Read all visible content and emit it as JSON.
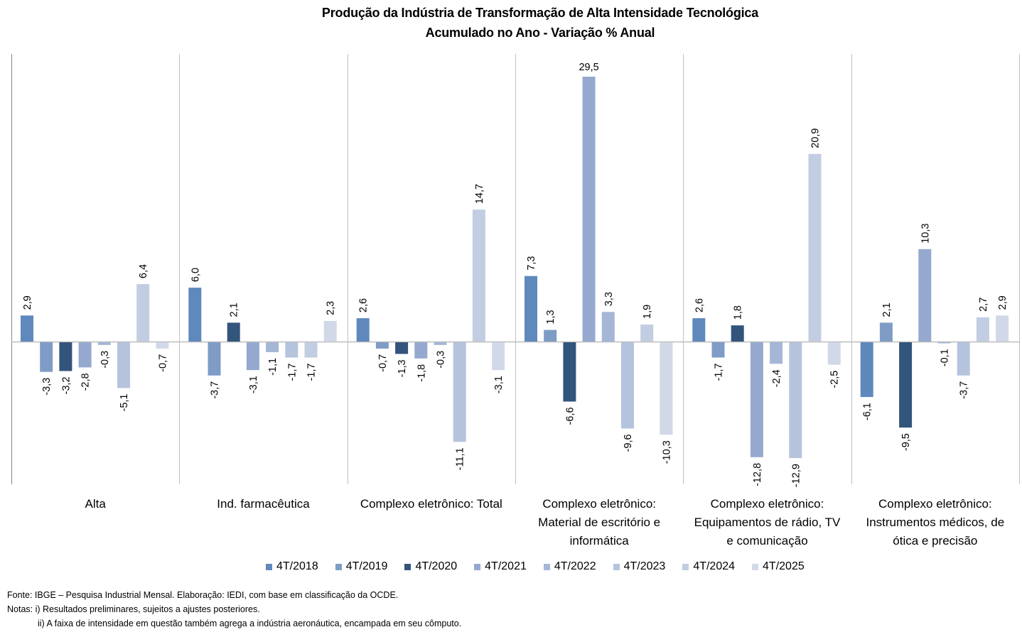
{
  "chart_data": {
    "type": "bar",
    "title": "Produção da Indústria de Transformação de Alta Intensidade Tecnológica",
    "subtitle": "Acumulado no Ano - Variação % Anual",
    "xlabel": "",
    "ylabel": "",
    "ylim": [
      -15,
      32
    ],
    "grid": false,
    "legend_position": "bottom",
    "categories": [
      "Alta",
      "Ind. farmacêutica",
      "Complexo eletrônico: Total",
      "Complexo eletrônico: Material de escritório e informática",
      "Complexo eletrônico: Equipamentos de rádio, TV e comunicação",
      "Complexo eletrônico: Instrumentos médicos, de ótica e precisão"
    ],
    "category_label_lines": [
      [
        "Alta"
      ],
      [
        "Ind. farmacêutica"
      ],
      [
        "Complexo eletrônico: Total"
      ],
      [
        "Complexo eletrônico:",
        "Material de escritório e",
        "informática"
      ],
      [
        "Complexo eletrônico:",
        "Equipamentos de rádio, TV",
        "e comunicação"
      ],
      [
        "Complexo eletrônico:",
        "Instrumentos médicos, de",
        "ótica e precisão"
      ]
    ],
    "series": [
      {
        "name": "4T/2018",
        "color": "#5f88bd",
        "values": [
          2.9,
          6.0,
          2.6,
          7.3,
          2.6,
          -6.1
        ],
        "labels": [
          "2,9",
          "6,0",
          "2,6",
          "7,3",
          "2,6",
          "-6,1"
        ]
      },
      {
        "name": "4T/2019",
        "color": "#7f9cc6",
        "values": [
          -3.3,
          -3.7,
          -0.7,
          1.3,
          -1.7,
          2.1
        ],
        "labels": [
          "-3,3",
          "-3,7",
          "-0,7",
          "1,3",
          "-1,7",
          "2,1"
        ]
      },
      {
        "name": "4T/2020",
        "color": "#33547b",
        "values": [
          -3.2,
          2.1,
          -1.3,
          -6.6,
          1.8,
          -9.5
        ],
        "labels": [
          "-3,2",
          "2,1",
          "-1,3",
          "-6,6",
          "1,8",
          "-9,5"
        ]
      },
      {
        "name": "4T/2021",
        "color": "#95a9cf",
        "values": [
          -2.8,
          -3.1,
          -1.8,
          29.5,
          -12.8,
          10.3
        ],
        "labels": [
          "-2,8",
          "-3,1",
          "-1,8",
          "29,5",
          "-12,8",
          "10,3"
        ]
      },
      {
        "name": "4T/2022",
        "color": "#a5b6d6",
        "values": [
          -0.3,
          -1.1,
          -0.3,
          3.3,
          -2.4,
          -0.1
        ],
        "labels": [
          "-0,3",
          "-1,1",
          "-0,3",
          "3,3",
          "-2,4",
          "-0,1"
        ]
      },
      {
        "name": "4T/2023",
        "color": "#b5c3dd",
        "values": [
          -5.1,
          -1.7,
          -11.1,
          -9.6,
          -12.9,
          -3.7
        ],
        "labels": [
          "-5,1",
          "-1,7",
          "-11,1",
          "-9,6",
          "-12,9",
          "-3,7"
        ]
      },
      {
        "name": "4T/2024",
        "color": "#c3cde2",
        "values": [
          6.4,
          -1.7,
          14.7,
          1.9,
          20.9,
          2.7
        ],
        "labels": [
          "6,4",
          "-1,7",
          "14,7",
          "1,9",
          "20,9",
          "2,7"
        ]
      },
      {
        "name": "4T/2025",
        "color": "#d1d8e7",
        "values": [
          -0.7,
          2.3,
          -3.1,
          -10.3,
          -2.5,
          2.9
        ],
        "labels": [
          "-0,7",
          "2,3",
          "-3,1",
          "-10,3",
          "-2,5",
          "2,9"
        ]
      }
    ]
  },
  "footer": {
    "source": "Fonte: IBGE – Pesquisa Industrial Mensal. Elaboração: IEDI, com base em classificação da OCDE.",
    "note1": "Notas: i) Resultados preliminares, sujeitos a ajustes posteriores.",
    "note2": "ii) A faixa de intensidade em questão também  agrega a indústria aeronáutica, encampada em seu cômputo."
  }
}
